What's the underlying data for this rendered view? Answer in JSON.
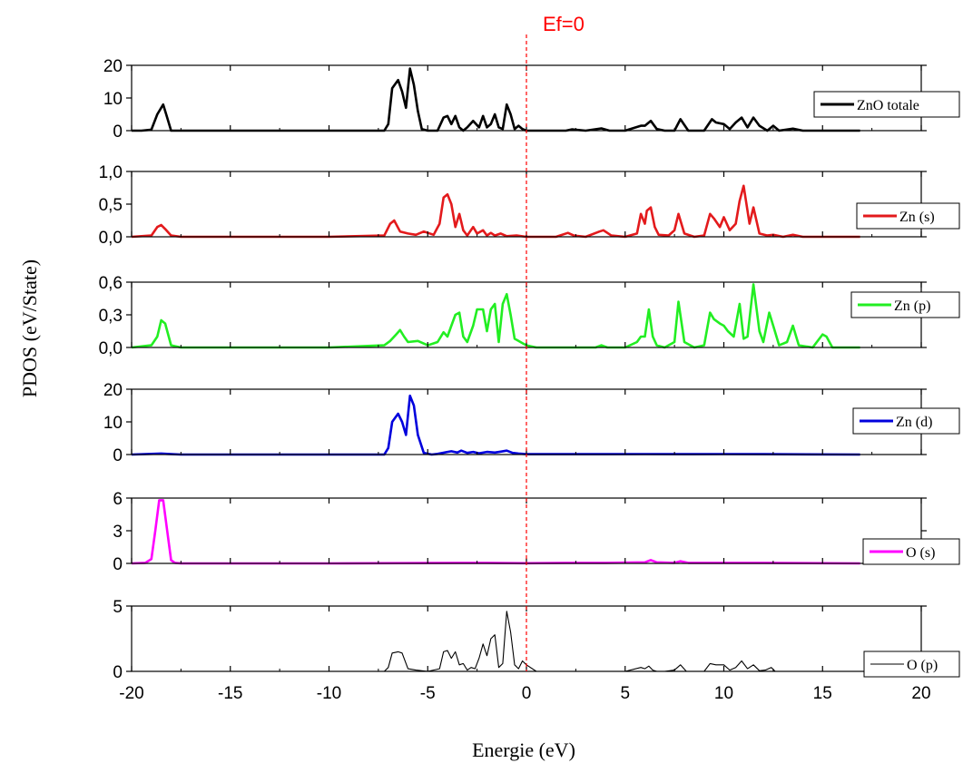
{
  "chart_data": {
    "type": "line",
    "title": "Ef=0",
    "xlabel": "Energie (eV)",
    "ylabel": "PDOS (eV/State)",
    "xlim": [
      -20,
      20
    ],
    "x_ticks": [
      -20,
      -15,
      -10,
      -5,
      0,
      5,
      10,
      15,
      20
    ],
    "x_tick_labels": [
      "-20",
      "-15",
      "-10",
      "-5",
      "0",
      "5",
      "10",
      "15",
      "20"
    ],
    "reference_line": {
      "x": 0,
      "color": "#ff0000",
      "style": "dashed",
      "label": "Ef=0"
    },
    "panels": [
      {
        "legend": "ZnO totale",
        "color": "#000000",
        "ylim": [
          0,
          20
        ],
        "y_ticks": [
          0,
          10,
          20
        ],
        "y_tick_labels": [
          "0",
          "10",
          "20"
        ],
        "x": [
          -20,
          -19.5,
          -19.0,
          -18.7,
          -18.4,
          -18.2,
          -18.0,
          -17.5,
          -10,
          -7.2,
          -7.0,
          -6.8,
          -6.5,
          -6.3,
          -6.1,
          -5.9,
          -5.7,
          -5.5,
          -5.3,
          -5.0,
          -4.5,
          -4.2,
          -4.0,
          -3.8,
          -3.6,
          -3.4,
          -3.2,
          -3.0,
          -2.7,
          -2.4,
          -2.2,
          -2.0,
          -1.8,
          -1.6,
          -1.4,
          -1.2,
          -1.0,
          -0.8,
          -0.6,
          -0.4,
          -0.2,
          0.0,
          0.3,
          1,
          2,
          2.3,
          3,
          3.8,
          4.2,
          5,
          5.8,
          6.0,
          6.3,
          6.6,
          7,
          7.5,
          7.8,
          8.2,
          9,
          9.4,
          9.6,
          10.0,
          10.3,
          10.6,
          10.9,
          11.2,
          11.5,
          11.8,
          12.2,
          12.5,
          12.8,
          13.5,
          14,
          15,
          15.5,
          16.9
        ],
        "y": [
          0,
          0,
          0.3,
          5,
          8,
          4,
          0,
          0,
          0,
          0,
          2,
          13,
          15.5,
          12,
          7,
          19,
          14,
          6,
          0.5,
          0,
          0,
          4,
          4.5,
          2,
          4.5,
          1,
          0,
          1,
          3,
          1,
          4.5,
          1,
          2,
          5,
          1,
          0.5,
          8,
          5,
          0.5,
          1.5,
          0.5,
          0,
          0,
          0,
          0,
          0.4,
          0,
          0.7,
          0,
          0,
          1.5,
          1.5,
          3,
          0.5,
          0,
          0,
          3.5,
          0,
          0,
          3.5,
          2.5,
          2,
          0.5,
          2.5,
          4,
          1,
          4,
          1.5,
          0,
          1.5,
          0,
          0.6,
          0,
          0,
          0,
          0
        ]
      },
      {
        "legend": "Zn (s)",
        "color": "#e31a1c",
        "ylim": [
          0,
          1.0
        ],
        "y_ticks": [
          0,
          0.5,
          1.0
        ],
        "y_tick_labels": [
          "0,0",
          "0,5",
          "1,0"
        ],
        "x": [
          -20,
          -19.0,
          -18.7,
          -18.5,
          -18.3,
          -18.0,
          -17.5,
          -10,
          -7.2,
          -6.9,
          -6.7,
          -6.4,
          -6.0,
          -5.6,
          -5.2,
          -4.7,
          -4.4,
          -4.2,
          -4.0,
          -3.8,
          -3.6,
          -3.4,
          -3.2,
          -3.0,
          -2.7,
          -2.5,
          -2.2,
          -2.0,
          -1.8,
          -1.6,
          -1.3,
          -1.0,
          -0.5,
          0,
          1.5,
          2.1,
          2.4,
          3,
          3.7,
          3.9,
          4.3,
          5,
          5.6,
          5.8,
          6.0,
          6.1,
          6.3,
          6.5,
          6.7,
          7.2,
          7.5,
          7.7,
          8.0,
          8.5,
          9.0,
          9.3,
          9.5,
          9.8,
          10.0,
          10.3,
          10.6,
          10.8,
          11.0,
          11.3,
          11.5,
          11.8,
          12.2,
          12.5,
          13,
          13.5,
          14,
          16.9
        ],
        "y": [
          0,
          0.02,
          0.15,
          0.18,
          0.12,
          0.02,
          0,
          0,
          0.02,
          0.2,
          0.25,
          0.08,
          0.05,
          0.03,
          0.08,
          0.03,
          0.2,
          0.6,
          0.65,
          0.5,
          0.15,
          0.35,
          0.1,
          0.02,
          0.15,
          0.05,
          0.1,
          0.02,
          0.06,
          0.02,
          0.05,
          0.01,
          0.02,
          0,
          0,
          0.06,
          0.02,
          0,
          0.08,
          0.1,
          0.02,
          0,
          0.05,
          0.35,
          0.2,
          0.4,
          0.45,
          0.15,
          0.03,
          0.02,
          0.1,
          0.35,
          0.05,
          0,
          0.02,
          0.35,
          0.28,
          0.15,
          0.3,
          0.1,
          0.2,
          0.55,
          0.78,
          0.2,
          0.45,
          0.05,
          0.02,
          0.03,
          0,
          0.03,
          0,
          0
        ]
      },
      {
        "legend": "Zn (p)",
        "color": "#22ee22",
        "ylim": [
          0,
          0.6
        ],
        "y_ticks": [
          0,
          0.3,
          0.6
        ],
        "y_tick_labels": [
          "0,0",
          "0,3",
          "0,6"
        ],
        "x": [
          -20,
          -19.0,
          -18.7,
          -18.5,
          -18.3,
          -18.0,
          -17.5,
          -10,
          -7.2,
          -6.9,
          -6.6,
          -6.4,
          -6.2,
          -6.0,
          -5.5,
          -5.0,
          -4.5,
          -4.2,
          -4.0,
          -3.8,
          -3.6,
          -3.4,
          -3.2,
          -3.0,
          -2.7,
          -2.5,
          -2.2,
          -2.0,
          -1.8,
          -1.6,
          -1.4,
          -1.2,
          -1.0,
          -0.8,
          -0.6,
          -0.4,
          -0.2,
          0.0,
          0.5,
          1,
          3.5,
          3.8,
          4.1,
          5,
          5.6,
          5.8,
          6.0,
          6.2,
          6.4,
          6.6,
          7,
          7.5,
          7.7,
          8.0,
          8.5,
          9,
          9.3,
          9.5,
          9.8,
          10.0,
          10.2,
          10.5,
          10.8,
          11.0,
          11.2,
          11.5,
          11.8,
          12.0,
          12.3,
          12.5,
          12.8,
          13.2,
          13.5,
          13.8,
          14.5,
          15,
          15.2,
          15.5,
          16.9
        ],
        "y": [
          0,
          0.02,
          0.1,
          0.25,
          0.22,
          0.02,
          0,
          0,
          0.02,
          0.06,
          0.12,
          0.16,
          0.1,
          0.05,
          0.06,
          0.02,
          0.05,
          0.14,
          0.1,
          0.2,
          0.3,
          0.32,
          0.1,
          0.05,
          0.2,
          0.35,
          0.35,
          0.15,
          0.35,
          0.4,
          0.05,
          0.4,
          0.49,
          0.3,
          0.08,
          0.06,
          0.04,
          0.02,
          0,
          0,
          0,
          0.02,
          0,
          0,
          0.05,
          0.1,
          0.1,
          0.35,
          0.1,
          0.02,
          0,
          0.05,
          0.42,
          0.05,
          0,
          0.02,
          0.32,
          0.26,
          0.22,
          0.2,
          0.15,
          0.1,
          0.4,
          0.08,
          0.1,
          0.58,
          0.15,
          0.05,
          0.32,
          0.2,
          0.02,
          0.05,
          0.2,
          0.02,
          0,
          0.12,
          0.1,
          0,
          0
        ]
      },
      {
        "legend": "Zn (d)",
        "color": "#0000dd",
        "ylim": [
          0,
          20
        ],
        "y_ticks": [
          0,
          10,
          20
        ],
        "y_tick_labels": [
          "0",
          "10",
          "20"
        ],
        "x": [
          -20,
          -18.5,
          -18.2,
          -17.5,
          -10,
          -7.2,
          -7.0,
          -6.8,
          -6.5,
          -6.3,
          -6.1,
          -5.9,
          -5.7,
          -5.5,
          -5.2,
          -4.8,
          -4.5,
          -4.0,
          -3.8,
          -3.5,
          -3.3,
          -3.0,
          -2.7,
          -2.4,
          -2.0,
          -1.6,
          -1.3,
          -1.0,
          -0.7,
          -0.4,
          0,
          2,
          4,
          6,
          8,
          10,
          12,
          16.9
        ],
        "y": [
          0,
          0.3,
          0.2,
          0,
          0,
          0,
          2,
          10,
          12.5,
          10,
          6,
          18,
          15,
          6,
          0.5,
          0,
          0.2,
          0.8,
          1,
          0.6,
          1.2,
          0.5,
          0.8,
          0.4,
          0.8,
          0.6,
          0.9,
          1.2,
          0.5,
          0.3,
          0.1,
          0.1,
          0.1,
          0.15,
          0.1,
          0.15,
          0.1,
          0
        ]
      },
      {
        "legend": "O (s)",
        "color": "#ff00ff",
        "ylim": [
          0,
          6
        ],
        "y_ticks": [
          0,
          3,
          6
        ],
        "y_tick_labels": [
          "0",
          "3",
          "6"
        ],
        "x": [
          -20,
          -19.3,
          -19.0,
          -18.8,
          -18.6,
          -18.4,
          -18.2,
          -18.0,
          -17.8,
          -17.5,
          -10,
          -5,
          -2,
          0,
          2,
          4,
          6,
          6.3,
          6.6,
          7.5,
          7.8,
          8.2,
          10,
          12,
          16.9
        ],
        "y": [
          0,
          0.05,
          0.4,
          3,
          5.8,
          5.8,
          3,
          0.3,
          0.05,
          0,
          0,
          0.03,
          0.05,
          0.02,
          0.05,
          0.05,
          0.1,
          0.3,
          0.1,
          0.05,
          0.2,
          0.05,
          0.05,
          0.05,
          0
        ]
      },
      {
        "legend": "O (p)",
        "color": "#000000",
        "line_width": "thin",
        "ylim": [
          0,
          5
        ],
        "y_ticks": [
          0,
          5
        ],
        "y_tick_labels": [
          "0",
          "5"
        ],
        "x": [
          -20,
          -10,
          -7.2,
          -7.0,
          -6.8,
          -6.5,
          -6.3,
          -6.0,
          -5.6,
          -5.0,
          -4.4,
          -4.2,
          -4.0,
          -3.8,
          -3.6,
          -3.4,
          -3.2,
          -3.0,
          -2.8,
          -2.6,
          -2.4,
          -2.2,
          -2.0,
          -1.8,
          -1.6,
          -1.4,
          -1.2,
          -1.0,
          -0.8,
          -0.6,
          -0.4,
          -0.2,
          0.0,
          0.5,
          3,
          4,
          5,
          5.8,
          6.0,
          6.2,
          6.4,
          6.6,
          7,
          7.5,
          7.8,
          8.1,
          9,
          9.3,
          9.6,
          10.0,
          10.3,
          10.6,
          10.9,
          11.2,
          11.5,
          11.8,
          12.1,
          12.4,
          12.6,
          13,
          16.9
        ],
        "y": [
          0,
          0,
          0,
          0.3,
          1.4,
          1.5,
          1.4,
          0.2,
          0.1,
          0,
          0.2,
          1.5,
          1.6,
          1.0,
          1.5,
          0.5,
          0.6,
          0.1,
          0.3,
          0.2,
          1.0,
          2.1,
          1.2,
          2.5,
          2.8,
          0.3,
          0.6,
          4.6,
          3.0,
          0.5,
          0.2,
          0.8,
          0.5,
          0,
          0,
          0,
          0,
          0.3,
          0.2,
          0.4,
          0.1,
          0,
          0,
          0.1,
          0.5,
          0,
          0,
          0.6,
          0.5,
          0.5,
          0.1,
          0.3,
          0.8,
          0.2,
          0.5,
          0.05,
          0.1,
          0.3,
          0,
          0,
          0
        ]
      }
    ]
  }
}
